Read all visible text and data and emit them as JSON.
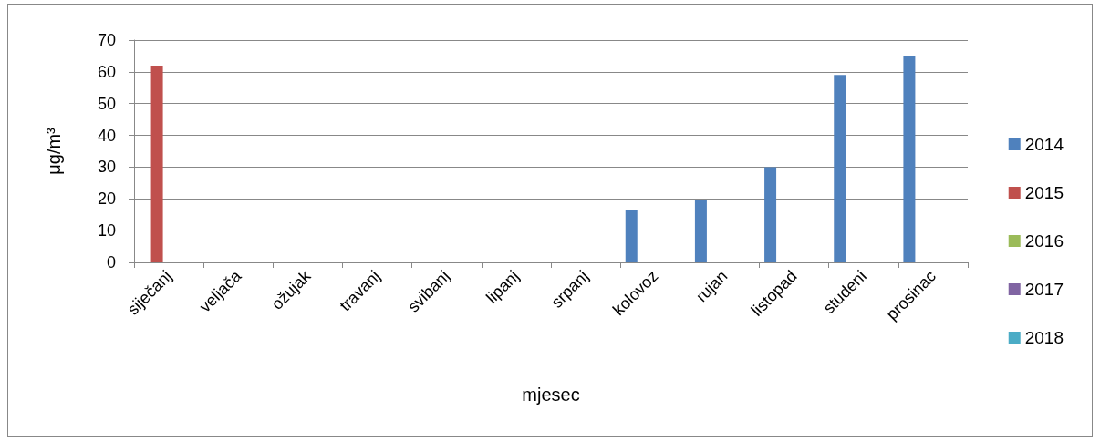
{
  "chart_data": {
    "type": "bar",
    "xlabel": "mjesec",
    "ylabel": "μg/m³",
    "categories": [
      "siječanj",
      "veljača",
      "ožujak",
      "travanj",
      "svibanj",
      "lipanj",
      "srpanj",
      "kolovoz",
      "rujan",
      "listopad",
      "studeni",
      "prosinac"
    ],
    "series": [
      {
        "name": "2014",
        "color": "#4f81bd",
        "values": [
          null,
          null,
          null,
          null,
          null,
          null,
          null,
          16.5,
          19.5,
          30,
          59,
          65
        ]
      },
      {
        "name": "2015",
        "color": "#c0504d",
        "values": [
          62,
          null,
          null,
          null,
          null,
          null,
          null,
          null,
          null,
          null,
          null,
          null
        ]
      },
      {
        "name": "2016",
        "color": "#9bbb59",
        "values": [
          null,
          null,
          null,
          null,
          null,
          null,
          null,
          null,
          null,
          null,
          null,
          null
        ]
      },
      {
        "name": "2017",
        "color": "#8064a2",
        "values": [
          null,
          null,
          null,
          null,
          null,
          null,
          null,
          null,
          null,
          null,
          null,
          null
        ]
      },
      {
        "name": "2018",
        "color": "#4bacc6",
        "values": [
          null,
          null,
          null,
          null,
          null,
          null,
          null,
          null,
          null,
          null,
          null,
          null
        ]
      }
    ],
    "ylim": [
      0,
      70
    ],
    "yticks": [
      0,
      10,
      20,
      30,
      40,
      50,
      60,
      70
    ],
    "grid": "y",
    "legend": "right"
  }
}
